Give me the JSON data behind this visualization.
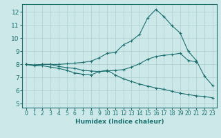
{
  "xlabel": "Humidex (Indice chaleur)",
  "background_color": "#cce8e8",
  "line_color": "#1a6e6e",
  "grid_color": "#aed0d0",
  "xlim": [
    -0.5,
    23.5
  ],
  "ylim": [
    4.7,
    12.6
  ],
  "xticks": [
    0,
    1,
    2,
    3,
    4,
    5,
    6,
    7,
    8,
    9,
    10,
    11,
    12,
    13,
    14,
    15,
    16,
    17,
    18,
    19,
    20,
    21,
    22,
    23
  ],
  "yticks": [
    5,
    6,
    7,
    8,
    9,
    10,
    11,
    12
  ],
  "x_vals": [
    0,
    1,
    2,
    3,
    4,
    5,
    6,
    7,
    8,
    9,
    10,
    11,
    12,
    13,
    14,
    15,
    16,
    17,
    18,
    19,
    20,
    21,
    22,
    23
  ],
  "line_top": [
    8.0,
    7.95,
    8.0,
    8.0,
    8.0,
    8.05,
    8.1,
    8.15,
    8.25,
    8.5,
    8.85,
    8.9,
    9.5,
    9.8,
    10.3,
    11.55,
    12.2,
    11.65,
    10.95,
    10.4,
    9.0,
    8.3,
    7.1,
    6.4
  ],
  "line_mid": [
    8.0,
    7.95,
    8.0,
    8.0,
    7.85,
    7.75,
    7.7,
    7.55,
    7.5,
    7.45,
    7.5,
    7.55,
    7.6,
    7.8,
    8.05,
    8.4,
    8.6,
    8.7,
    8.75,
    8.85,
    8.3,
    8.2,
    null,
    null
  ],
  "line_bot": [
    8.0,
    7.9,
    7.9,
    7.8,
    7.7,
    7.55,
    7.35,
    7.25,
    7.2,
    7.45,
    7.55,
    7.2,
    6.9,
    6.7,
    6.5,
    6.35,
    6.2,
    6.1,
    5.95,
    5.8,
    5.7,
    5.6,
    5.55,
    5.45
  ]
}
